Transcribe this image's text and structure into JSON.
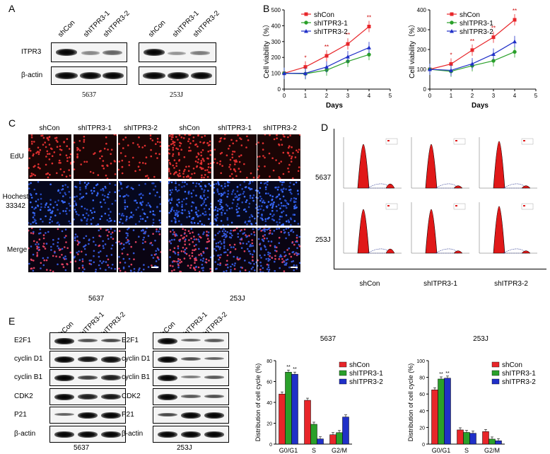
{
  "panel_a": {
    "label": "A",
    "lanes": [
      "shCon",
      "shITPR3-1",
      "shITPR3-2"
    ],
    "rows": [
      "ITPR3",
      "β-actin"
    ],
    "cell_lines": [
      "5637",
      "253J"
    ]
  },
  "panel_b": {
    "label": "B",
    "legend": [
      "shCon",
      "shITPR3-1",
      "shITPR3-2"
    ]
  },
  "panel_c": {
    "label": "C",
    "columns": [
      "shCon",
      "shITPR3-1",
      "shITPR3-2",
      "shCon",
      "shITPR3-1",
      "shITPR3-2"
    ],
    "rows": [
      "EdU",
      "Hochest 33342",
      "Merge"
    ],
    "row_hochest_line1": "Hochest",
    "row_hochest_line2": "33342",
    "cell_lines": [
      "5637",
      "253J"
    ]
  },
  "panel_d": {
    "label": "D",
    "rows": [
      "5637",
      "253J"
    ],
    "columns": [
      "shCon",
      "shITPR3-1",
      "shITPR3-2"
    ]
  },
  "panel_e": {
    "label": "E",
    "lanes": [
      "shCon",
      "shITPR3-1",
      "shITPR3-2"
    ],
    "rows": [
      "E2F1",
      "cyclin D1",
      "cyclin B1",
      "CDK2",
      "P21",
      "β-actin"
    ],
    "cell_lines": [
      "5637",
      "253J"
    ],
    "legend": [
      "shCon",
      "shITPR3-1",
      "shITPR3-2"
    ]
  },
  "colors": {
    "shCon": "#e8262a",
    "shITPR3-1": "#2aa02a",
    "shITPR3-2": "#2030c8"
  },
  "chart_data": [
    {
      "type": "line",
      "panel": "B-left",
      "xlabel": "Days",
      "ylabel": "Cell viability（%）",
      "xlim": [
        0,
        5
      ],
      "ylim": [
        0,
        500
      ],
      "x": [
        0,
        1,
        2,
        3,
        4
      ],
      "series": [
        {
          "name": "shCon",
          "values": [
            100,
            140,
            210,
            285,
            395
          ]
        },
        {
          "name": "shITPR3-1",
          "values": [
            100,
            97,
            120,
            175,
            218
          ]
        },
        {
          "name": "shITPR3-2",
          "values": [
            100,
            100,
            140,
            205,
            262
          ]
        }
      ],
      "annotations": [
        "*",
        "**",
        "**",
        "**"
      ]
    },
    {
      "type": "line",
      "panel": "B-right",
      "xlabel": "Days",
      "ylabel": "Cell viability（%）",
      "xlim": [
        0,
        5
      ],
      "ylim": [
        0,
        400
      ],
      "x": [
        0,
        1,
        2,
        3,
        4
      ],
      "series": [
        {
          "name": "shCon",
          "values": [
            100,
            127,
            197,
            262,
            350
          ]
        },
        {
          "name": "shITPR3-1",
          "values": [
            100,
            90,
            118,
            143,
            188
          ]
        },
        {
          "name": "shITPR3-2",
          "values": [
            100,
            95,
            128,
            177,
            240
          ]
        }
      ],
      "annotations": [
        "*",
        "**",
        "**",
        "**"
      ]
    },
    {
      "type": "bar",
      "panel": "E-5637",
      "title": "5637",
      "ylabel": "Distribution of cell cycle (%)",
      "ylim": [
        0,
        80
      ],
      "categories": [
        "G0/G1",
        "S",
        "G2/M"
      ],
      "series": [
        {
          "name": "shCon",
          "values": [
            48,
            42,
            9
          ]
        },
        {
          "name": "shITPR3-1",
          "values": [
            69,
            19,
            11
          ]
        },
        {
          "name": "shITPR3-2",
          "values": [
            67,
            5,
            26
          ]
        }
      ],
      "annotations": [
        "**",
        "**"
      ]
    },
    {
      "type": "bar",
      "panel": "E-253J",
      "title": "253J",
      "ylabel": "Distribution of cell cycle (%)",
      "ylim": [
        0,
        100
      ],
      "categories": [
        "G0/G1",
        "S",
        "G2/M"
      ],
      "series": [
        {
          "name": "shCon",
          "values": [
            65,
            17,
            15
          ]
        },
        {
          "name": "shITPR3-1",
          "values": [
            78,
            14,
            6
          ]
        },
        {
          "name": "shITPR3-2",
          "values": [
            79,
            13,
            4
          ]
        }
      ],
      "annotations": [
        "**",
        "**"
      ]
    }
  ]
}
